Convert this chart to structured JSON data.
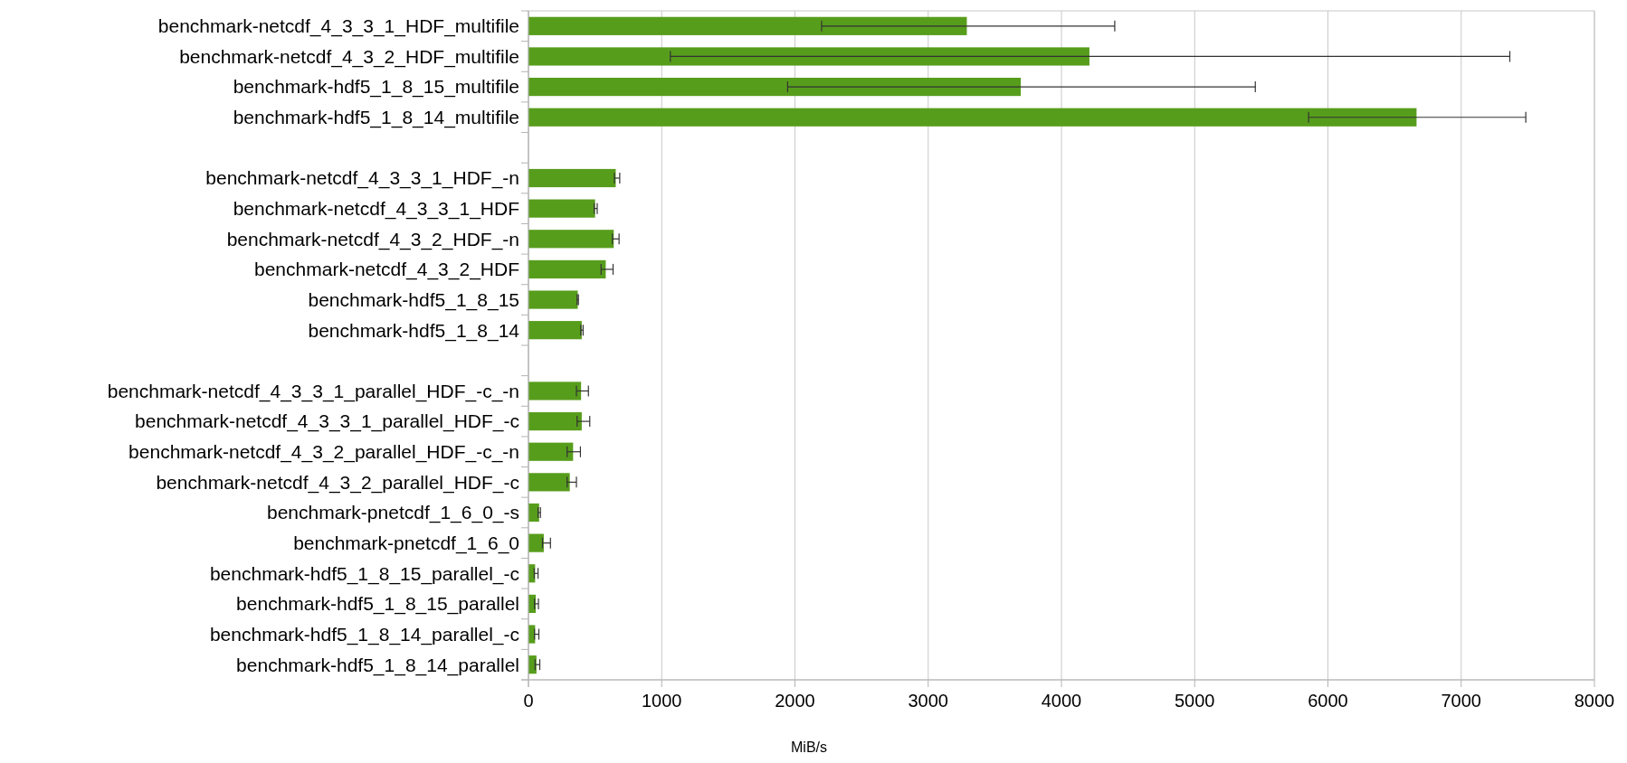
{
  "chart_data": {
    "type": "bar",
    "orientation": "horizontal",
    "xlabel": "MiB/s",
    "categories": [
      "benchmark-netcdf_4_3_3_1_HDF_multifile",
      "benchmark-netcdf_4_3_2_HDF_multifile",
      "benchmark-hdf5_1_8_15_multifile",
      "benchmark-hdf5_1_8_14_multifile",
      null,
      "benchmark-netcdf_4_3_3_1_HDF_-n",
      "benchmark-netcdf_4_3_3_1_HDF",
      "benchmark-netcdf_4_3_2_HDF_-n",
      "benchmark-netcdf_4_3_2_HDF",
      "benchmark-hdf5_1_8_15",
      "benchmark-hdf5_1_8_14",
      null,
      "benchmark-netcdf_4_3_3_1_parallel_HDF_-c_-n",
      "benchmark-netcdf_4_3_3_1_parallel_HDF_-c",
      "benchmark-netcdf_4_3_2_parallel_HDF_-c_-n",
      "benchmark-netcdf_4_3_2_parallel_HDF_-c",
      "benchmark-pnetcdf_1_6_0_-s",
      "benchmark-pnetcdf_1_6_0",
      "benchmark-hdf5_1_8_15_parallel_-c",
      "benchmark-hdf5_1_8_15_parallel",
      "benchmark-hdf5_1_8_14_parallel_-c",
      "benchmark-hdf5_1_8_14_parallel"
    ],
    "values": [
      3290,
      4210,
      3695,
      6665,
      null,
      655,
      500,
      640,
      580,
      370,
      400,
      null,
      395,
      400,
      335,
      310,
      80,
      115,
      50,
      55,
      50,
      60
    ],
    "errors": [
      [
        2200,
        4400
      ],
      [
        1065,
        7365
      ],
      [
        1945,
        5455
      ],
      [
        5855,
        7485
      ],
      null,
      [
        645,
        685
      ],
      [
        493,
        516
      ],
      [
        630,
        680
      ],
      [
        545,
        635
      ],
      [
        365,
        375
      ],
      [
        392,
        410
      ],
      null,
      [
        360,
        450
      ],
      [
        365,
        460
      ],
      [
        290,
        390
      ],
      [
        290,
        360
      ],
      [
        72,
        90
      ],
      [
        105,
        165
      ],
      [
        43,
        72
      ],
      [
        45,
        75
      ],
      [
        45,
        78
      ],
      [
        50,
        85
      ]
    ],
    "color": "#579d1c",
    "xlim": [
      0,
      8000
    ],
    "xticks": [
      0,
      1000,
      2000,
      3000,
      4000,
      5000,
      6000,
      7000,
      8000
    ],
    "grid": "x"
  }
}
